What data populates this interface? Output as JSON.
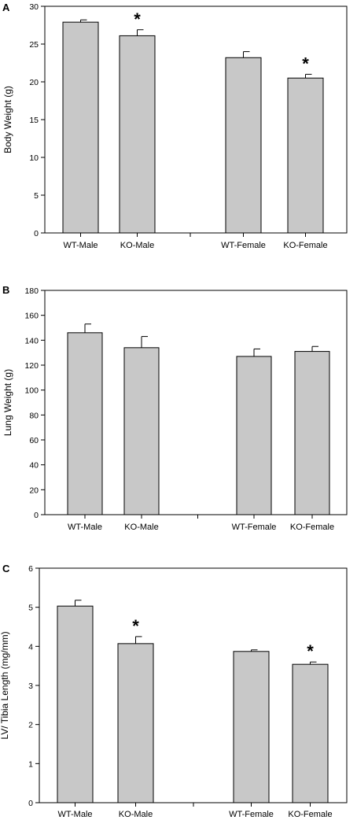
{
  "chart_data": [
    {
      "type": "bar",
      "panel_label": "A",
      "ylabel": "Body Weight (g)",
      "xlabel": "",
      "ylim": [
        0,
        30
      ],
      "yticks": [
        0,
        5,
        10,
        15,
        20,
        25,
        30
      ],
      "categories": [
        "WT-Male",
        "KO-Male",
        "WT-Female",
        "KO-Female"
      ],
      "values": [
        27.9,
        26.1,
        23.2,
        20.5
      ],
      "errors": [
        0.3,
        0.8,
        0.8,
        0.5
      ],
      "significance": [
        "",
        "*",
        "",
        "*"
      ],
      "bar_color": "#c8c8c8",
      "grid": false,
      "legend": "none"
    },
    {
      "type": "bar",
      "panel_label": "B",
      "ylabel": "Lung Weight (g)",
      "xlabel": "",
      "ylim": [
        0,
        180
      ],
      "yticks": [
        0,
        20,
        40,
        60,
        80,
        100,
        120,
        140,
        160,
        180
      ],
      "categories": [
        "WT-Male",
        "KO-Male",
        "WT-Female",
        "KO-Female"
      ],
      "values": [
        146,
        134,
        127,
        131
      ],
      "errors": [
        7,
        9,
        6,
        4
      ],
      "significance": [
        "",
        "",
        "",
        ""
      ],
      "bar_color": "#c8c8c8",
      "grid": false,
      "legend": "none"
    },
    {
      "type": "bar",
      "panel_label": "C",
      "ylabel": "LV/ Tibia Length (mg/mm)",
      "xlabel": "",
      "ylim": [
        0,
        6
      ],
      "yticks": [
        0,
        1,
        2,
        3,
        4,
        5,
        6
      ],
      "categories": [
        "WT-Male",
        "KO-Male",
        "WT-Female",
        "KO-Female"
      ],
      "values": [
        5.03,
        4.07,
        3.87,
        3.54
      ],
      "errors": [
        0.15,
        0.18,
        0.04,
        0.06
      ],
      "significance": [
        "",
        "*",
        "",
        "*"
      ],
      "bar_color": "#c8c8c8",
      "grid": false,
      "legend": "none"
    }
  ]
}
